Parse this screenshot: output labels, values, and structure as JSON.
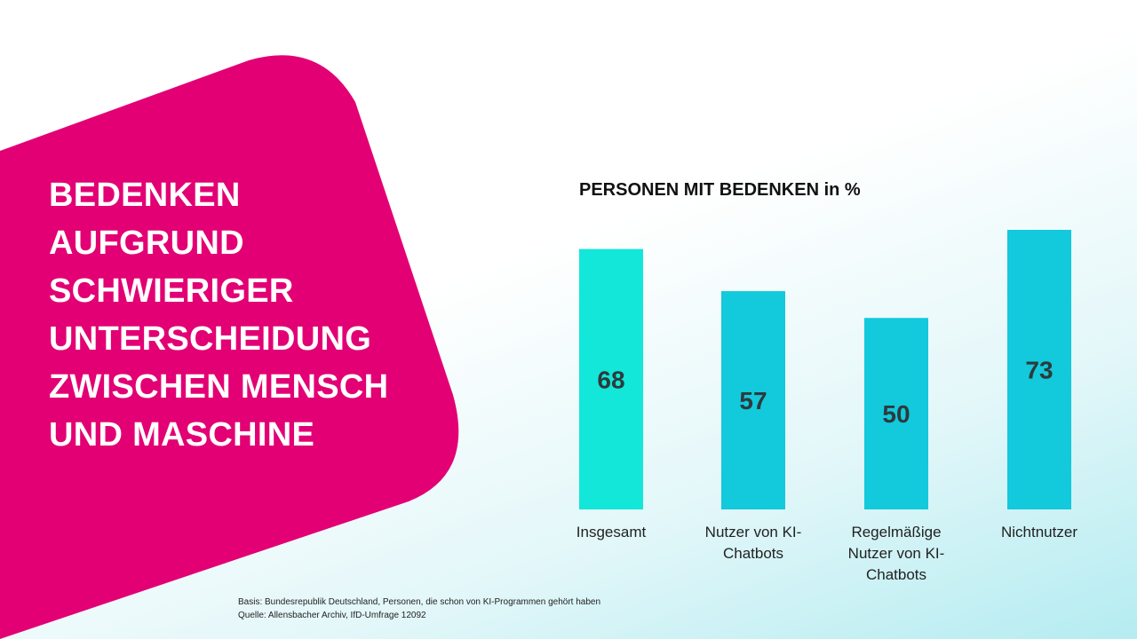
{
  "headline": {
    "lines": [
      "BEDENKEN",
      "AUFGRUND",
      "SCHWIERIGER",
      "UNTERSCHEIDUNG",
      "ZWISCHEN MENSCH",
      "UND MASCHINE"
    ]
  },
  "colors": {
    "magenta": "#e20074",
    "bar_first": "#13e7d9",
    "bar_other": "#13c9dc",
    "label_text": "#2d3a3c"
  },
  "chart_data": {
    "type": "bar",
    "title": "PERSONEN MIT BEDENKEN",
    "title_unit": "in %",
    "categories": [
      "Insgesamt",
      "Nutzer von KI-Chatbots",
      "Regelmäßige Nutzer von KI-Chatbots",
      "Nichtnutzer"
    ],
    "category_lines": [
      [
        "Insgesamt"
      ],
      [
        "Nutzer von KI-",
        "Chatbots"
      ],
      [
        "Regelmäßige",
        "Nutzer von KI-",
        "Chatbots"
      ],
      [
        "Nichtnutzer"
      ]
    ],
    "values": [
      68,
      57,
      50,
      73
    ],
    "ylim": [
      0,
      73
    ],
    "grid": false,
    "legend": "none"
  },
  "footnote": {
    "basis": "Basis: Bundesrepublik Deutschland, Personen, die schon von KI-Programmen gehört haben",
    "source": "Quelle: Allensbacher Archiv, IfD-Umfrage 12092"
  }
}
